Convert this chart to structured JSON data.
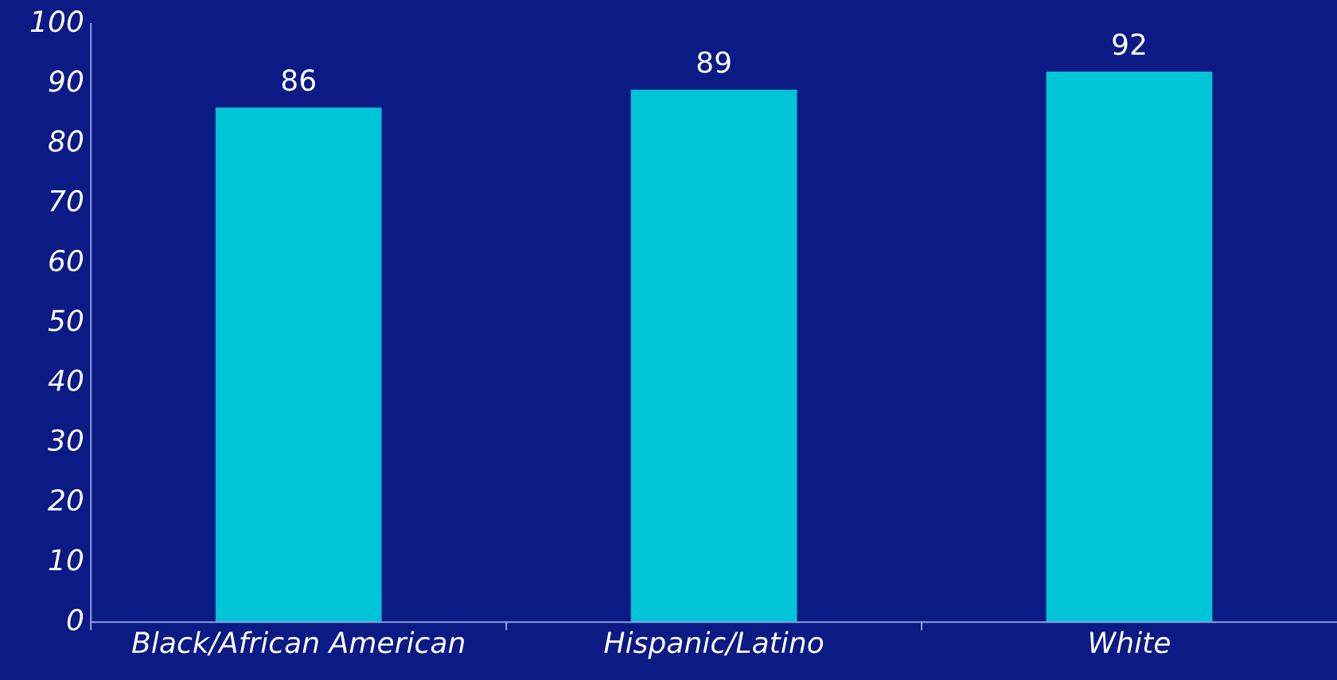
{
  "chart_data": {
    "type": "bar",
    "categories": [
      "Black/African American",
      "Hispanic/Latino",
      "White"
    ],
    "values": [
      86,
      89,
      92
    ],
    "color": "#00c5d6",
    "ylim": [
      0,
      100
    ],
    "yticks": [
      0,
      10,
      20,
      30,
      40,
      50,
      60,
      70,
      80,
      90,
      100
    ],
    "data_labels": true,
    "grid": false,
    "legend": false
  }
}
